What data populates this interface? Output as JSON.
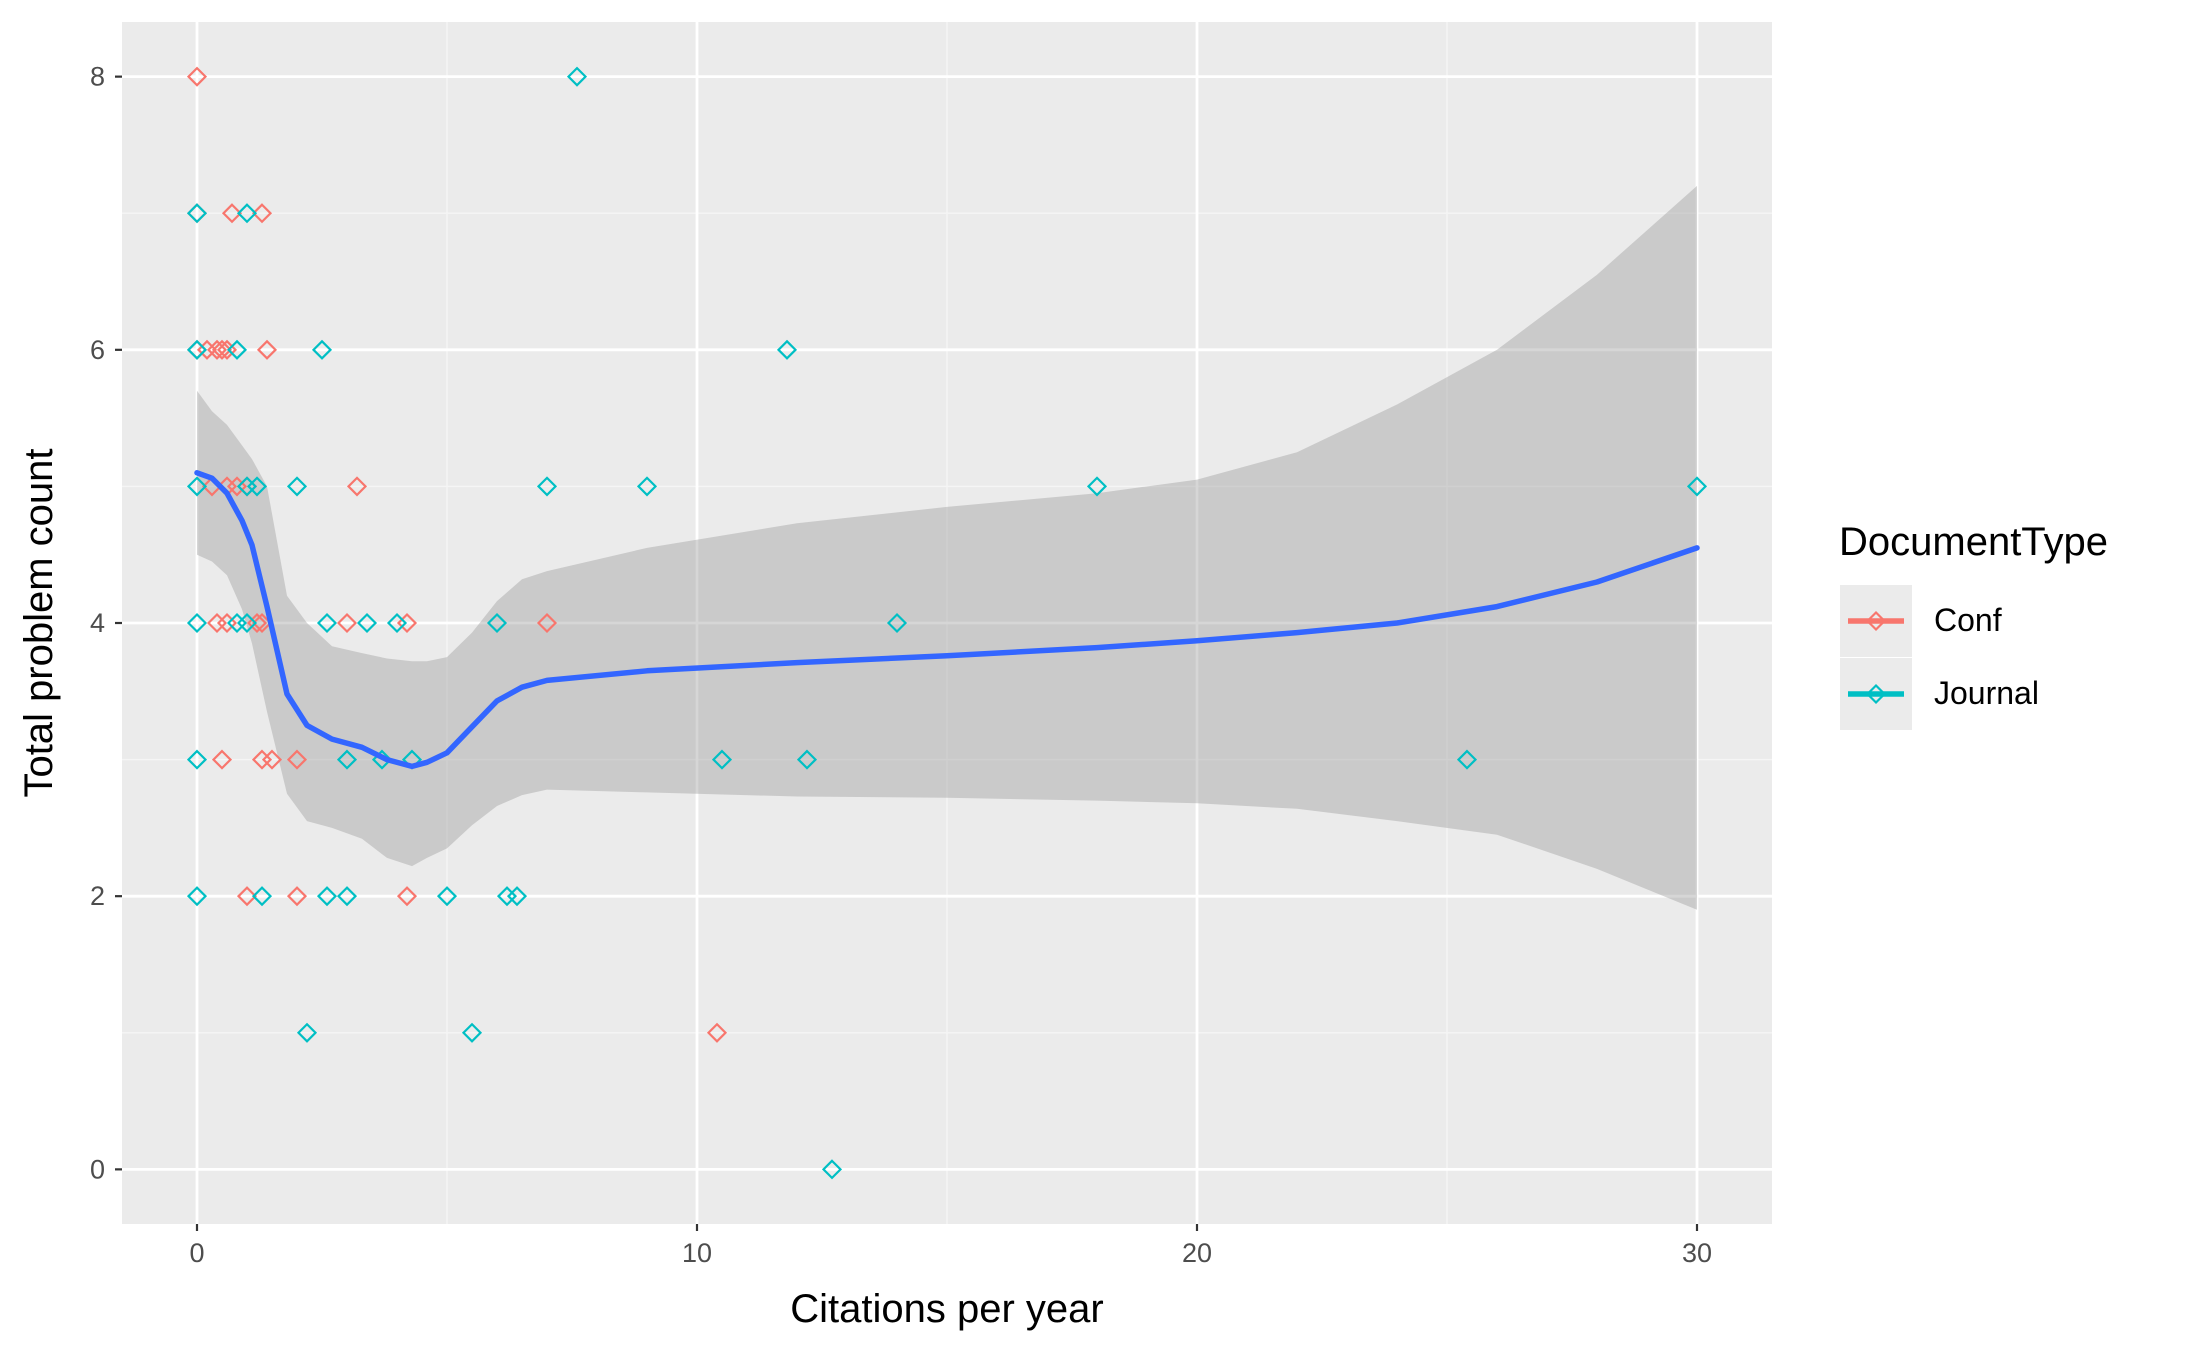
{
  "colors": {
    "panel": "#EBEBEB",
    "grid_major": "#FFFFFF",
    "grid_minor": "#F5F5F5",
    "conf": "#F8766D",
    "journal": "#00BFC4",
    "smooth_line": "#3366FF",
    "ribbon": "#999999",
    "text": "#000000",
    "tick_text": "#4D4D4D",
    "legend_key_bg": "#EBEBEB"
  },
  "chart_data": {
    "type": "scatter",
    "title": "",
    "xlabel": "Citations per year",
    "ylabel": "Total problem count",
    "xlim": [
      -1.5,
      31.5
    ],
    "ylim": [
      -0.4,
      8.4
    ],
    "x_ticks": [
      0,
      10,
      20,
      30
    ],
    "x_tick_labels": [
      "0",
      "10",
      "20",
      "30"
    ],
    "y_ticks": [
      0,
      2,
      4,
      6,
      8
    ],
    "y_tick_labels": [
      "0",
      "2",
      "4",
      "6",
      "8"
    ],
    "grid": true,
    "legend_position": "right",
    "legend_title": "DocumentType",
    "series": [
      {
        "name": "Conf",
        "points": [
          [
            0,
            8
          ],
          [
            0,
            7
          ],
          [
            0.7,
            7
          ],
          [
            1.3,
            7
          ],
          [
            0,
            6
          ],
          [
            0.2,
            6
          ],
          [
            0.4,
            6
          ],
          [
            0.5,
            6
          ],
          [
            0.6,
            6
          ],
          [
            1.4,
            6
          ],
          [
            0.3,
            5
          ],
          [
            0.6,
            5
          ],
          [
            0.8,
            5
          ],
          [
            1.0,
            5
          ],
          [
            3.2,
            5
          ],
          [
            0.4,
            4
          ],
          [
            0.6,
            4
          ],
          [
            1.2,
            4
          ],
          [
            1.3,
            4
          ],
          [
            3.0,
            4
          ],
          [
            4.2,
            4
          ],
          [
            7.0,
            4
          ],
          [
            0.5,
            3
          ],
          [
            1.3,
            3
          ],
          [
            1.5,
            3
          ],
          [
            2.0,
            3
          ],
          [
            1.0,
            2
          ],
          [
            2.0,
            2
          ],
          [
            4.2,
            2
          ],
          [
            10.4,
            1
          ]
        ]
      },
      {
        "name": "Journal",
        "points": [
          [
            7.6,
            8
          ],
          [
            0,
            7
          ],
          [
            1.0,
            7
          ],
          [
            0,
            6
          ],
          [
            0.8,
            6
          ],
          [
            2.5,
            6
          ],
          [
            11.8,
            6
          ],
          [
            0,
            5
          ],
          [
            1.0,
            5
          ],
          [
            1.2,
            5
          ],
          [
            2.0,
            5
          ],
          [
            7.0,
            5
          ],
          [
            9.0,
            5
          ],
          [
            18.0,
            5
          ],
          [
            30.0,
            5
          ],
          [
            0,
            4
          ],
          [
            0.8,
            4
          ],
          [
            1.0,
            4
          ],
          [
            2.6,
            4
          ],
          [
            3.4,
            4
          ],
          [
            4.0,
            4
          ],
          [
            6.0,
            4
          ],
          [
            14.0,
            4
          ],
          [
            0,
            3
          ],
          [
            3.0,
            3
          ],
          [
            3.7,
            3
          ],
          [
            4.3,
            3
          ],
          [
            10.5,
            3
          ],
          [
            12.2,
            3
          ],
          [
            25.4,
            3
          ],
          [
            0,
            2
          ],
          [
            1.3,
            2
          ],
          [
            2.6,
            2
          ],
          [
            3.0,
            2
          ],
          [
            5.0,
            2
          ],
          [
            6.2,
            2
          ],
          [
            6.4,
            2
          ],
          [
            2.2,
            1
          ],
          [
            5.5,
            1
          ],
          [
            12.7,
            0
          ]
        ]
      }
    ],
    "smooth": {
      "x": [
        0,
        0.3,
        0.6,
        0.9,
        1.1,
        1.4,
        1.8,
        2.2,
        2.7,
        3.3,
        3.8,
        4.3,
        4.6,
        5.0,
        5.5,
        6.0,
        6.5,
        7.0,
        9.0,
        12.0,
        15.0,
        18.0,
        20.0,
        22.0,
        24.0,
        26.0,
        28.0,
        30.0
      ],
      "y": [
        5.1,
        5.06,
        4.95,
        4.75,
        4.57,
        4.12,
        3.48,
        3.25,
        3.15,
        3.09,
        3.0,
        2.95,
        2.98,
        3.05,
        3.24,
        3.43,
        3.53,
        3.58,
        3.65,
        3.71,
        3.76,
        3.82,
        3.87,
        3.93,
        4.0,
        4.12,
        4.3,
        4.55
      ],
      "lower": [
        4.5,
        4.45,
        4.35,
        4.1,
        3.85,
        3.35,
        2.75,
        2.55,
        2.5,
        2.42,
        2.28,
        2.22,
        2.28,
        2.35,
        2.52,
        2.66,
        2.74,
        2.78,
        2.76,
        2.73,
        2.72,
        2.7,
        2.68,
        2.64,
        2.55,
        2.45,
        2.2,
        1.9
      ],
      "upper": [
        5.7,
        5.55,
        5.45,
        5.3,
        5.2,
        5.0,
        4.2,
        4.0,
        3.83,
        3.78,
        3.74,
        3.72,
        3.72,
        3.75,
        3.93,
        4.16,
        4.32,
        4.38,
        4.55,
        4.73,
        4.85,
        4.95,
        5.05,
        5.25,
        5.6,
        6.0,
        6.55,
        7.2
      ]
    }
  }
}
